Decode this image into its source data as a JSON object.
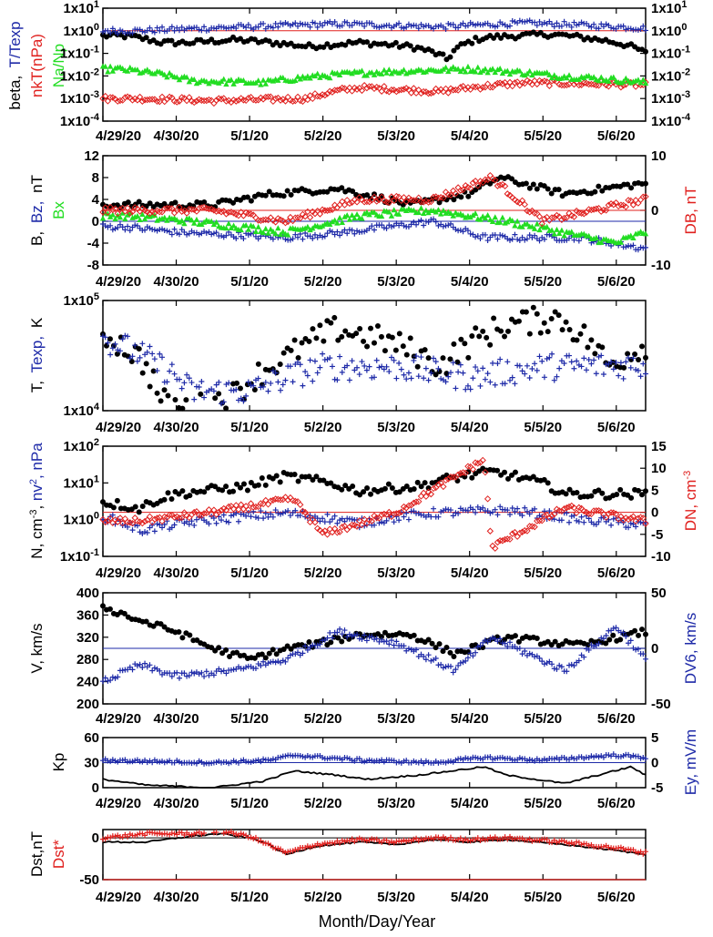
{
  "colors": {
    "black": "#000000",
    "blue": "#1e2aa8",
    "red": "#e0201e",
    "green": "#22dd22"
  },
  "x_axis": {
    "title": "Month/Day/Year",
    "dates": [
      "4/29/20",
      "4/30/20",
      "5/1/20",
      "5/2/20",
      "5/3/20",
      "5/4/20",
      "5/5/20",
      "5/6/20"
    ],
    "range_days": [
      0,
      7.4
    ]
  },
  "chart_data": [
    {
      "type": "scatter",
      "panel": "beta",
      "y_scale": "log",
      "ylim": [
        0.0001,
        10
      ],
      "y_ticks": [
        "1x10-4",
        "1x10-3",
        "1x10-2",
        "1x10-1",
        "1x100",
        "1x101"
      ],
      "y_ticks_right": [
        "1x10-4",
        "1x10-3",
        "1x10-2",
        "1x10-1",
        "1x100",
        "1x101"
      ],
      "labels": {
        "beta": "beta,",
        "t_texp": "T/Texp",
        "nkt": "nkT(nPa)",
        "na_np": "Na/Np"
      },
      "reference_line": 1,
      "series": [
        {
          "name": "beta",
          "marker": "dot",
          "color": "black",
          "baseline": 0.5,
          "values": [
            [
              0.3,
              0.6
            ],
            [
              0.8,
              0.3
            ],
            [
              1.2,
              0.3
            ],
            [
              1.8,
              0.4
            ],
            [
              2.3,
              0.3
            ],
            [
              2.8,
              0.2
            ],
            [
              3.5,
              0.3
            ],
            [
              4.2,
              0.2
            ],
            [
              4.7,
              0.05
            ],
            [
              5.2,
              0.5
            ],
            [
              6.1,
              0.7
            ],
            [
              7.0,
              0.3
            ],
            [
              7.4,
              0.1
            ]
          ]
        },
        {
          "name": "T/Texp",
          "marker": "plus",
          "color": "blue",
          "baseline": 1.2,
          "values": [
            [
              0.5,
              1.0
            ],
            [
              2.0,
              1.5
            ],
            [
              3.2,
              2.0
            ],
            [
              4.6,
              1.5
            ],
            [
              5.8,
              2.2
            ],
            [
              7.4,
              1.3
            ]
          ]
        },
        {
          "name": "nkT(nPa)",
          "marker": "diamond",
          "color": "red",
          "baseline": 0.0015,
          "values": [
            [
              0.5,
              0.001
            ],
            [
              1.5,
              0.0008
            ],
            [
              2.8,
              0.001
            ],
            [
              3.5,
              0.003
            ],
            [
              4.6,
              0.002
            ],
            [
              5.8,
              0.005
            ],
            [
              7.4,
              0.004
            ]
          ]
        },
        {
          "name": "Na/Np",
          "marker": "triangle",
          "color": "green",
          "baseline": 0.006,
          "values": [
            [
              0.2,
              0.02
            ],
            [
              1.2,
              0.006
            ],
            [
              2.2,
              0.005
            ],
            [
              3.8,
              0.015
            ],
            [
              5.0,
              0.02
            ],
            [
              6.2,
              0.01
            ],
            [
              7.4,
              0.005
            ]
          ]
        }
      ]
    },
    {
      "type": "scatter",
      "panel": "B",
      "ylim": [
        -8,
        12
      ],
      "y_ticks": [
        "-8",
        "-4",
        "0",
        "4",
        "8",
        "12"
      ],
      "right_axis": {
        "ylim": [
          -10,
          10
        ],
        "ticks": [
          "-10",
          "0",
          "10"
        ]
      },
      "labels": {
        "b": "B,",
        "bz": "Bz,",
        "nt": "nT",
        "bx": "Bx",
        "db": "DB, nT"
      },
      "reference_lines": {
        "left_zero": 0,
        "right_zero": 0
      },
      "series": [
        {
          "name": "B",
          "marker": "dot",
          "color": "black",
          "values": [
            [
              0.3,
              3
            ],
            [
              1.5,
              3
            ],
            [
              2.3,
              5
            ],
            [
              3.2,
              6
            ],
            [
              4.2,
              3
            ],
            [
              5.0,
              5
            ],
            [
              5.4,
              8
            ],
            [
              6.3,
              5
            ],
            [
              7.4,
              7
            ]
          ]
        },
        {
          "name": "Bz",
          "marker": "plus",
          "color": "blue",
          "values": [
            [
              0.3,
              -1
            ],
            [
              1.0,
              -2
            ],
            [
              2.5,
              -3
            ],
            [
              3.3,
              -2
            ],
            [
              4.5,
              0
            ],
            [
              5.2,
              -3
            ],
            [
              6.5,
              -3
            ],
            [
              7.4,
              -5
            ]
          ]
        },
        {
          "name": "Bx",
          "marker": "triangle",
          "color": "green",
          "values": [
            [
              0.3,
              1
            ],
            [
              1.2,
              0
            ],
            [
              2.5,
              -2
            ],
            [
              3.5,
              1
            ],
            [
              4.5,
              2
            ],
            [
              5.5,
              0
            ],
            [
              7.0,
              -4
            ],
            [
              7.4,
              -2
            ]
          ]
        },
        {
          "name": "DB",
          "marker": "diamond",
          "color": "red",
          "axis": "right",
          "values": [
            [
              0.3,
              0
            ],
            [
              1.5,
              0
            ],
            [
              2.5,
              -2
            ],
            [
              3.5,
              2
            ],
            [
              4.5,
              2
            ],
            [
              5.3,
              6
            ],
            [
              6.0,
              -2
            ],
            [
              7.4,
              2
            ]
          ]
        }
      ]
    },
    {
      "type": "scatter",
      "panel": "T",
      "y_scale": "log",
      "ylim": [
        10000,
        100000
      ],
      "y_ticks": [
        "1x104",
        "1x105"
      ],
      "labels": {
        "t": "T,",
        "texp": "Texp,",
        "k": "K"
      },
      "series": [
        {
          "name": "T",
          "marker": "dot",
          "color": "black",
          "values": [
            [
              0.0,
              50000
            ],
            [
              0.5,
              30000
            ],
            [
              0.8,
              12000
            ],
            [
              1.2,
              10000
            ],
            [
              1.8,
              14000
            ],
            [
              2.5,
              30000
            ],
            [
              3.2,
              55000
            ],
            [
              4.0,
              40000
            ],
            [
              4.6,
              25000
            ],
            [
              5.5,
              60000
            ],
            [
              6.2,
              70000
            ],
            [
              6.9,
              25000
            ],
            [
              7.4,
              40000
            ]
          ]
        },
        {
          "name": "Texp",
          "marker": "plus",
          "color": "blue",
          "values": [
            [
              0.0,
              45000
            ],
            [
              0.6,
              30000
            ],
            [
              1.2,
              15000
            ],
            [
              2.0,
              15000
            ],
            [
              3.0,
              25000
            ],
            [
              4.0,
              25000
            ],
            [
              5.0,
              20000
            ],
            [
              6.0,
              25000
            ],
            [
              7.4,
              26000
            ]
          ]
        }
      ]
    },
    {
      "type": "scatter",
      "panel": "N",
      "y_scale": "log",
      "ylim": [
        0.1,
        100
      ],
      "y_ticks": [
        "1x10-1",
        "1x100",
        "1x101",
        "1x102"
      ],
      "right_axis": {
        "ylim": [
          -10,
          15
        ],
        "ticks": [
          "-10",
          "-5",
          "0",
          "5",
          "10",
          "15"
        ]
      },
      "labels": {
        "n": "N, cm",
        "nv2": "nv",
        "npa": "nPa",
        "dn": "DN, cm"
      },
      "series": [
        {
          "name": "N",
          "marker": "dot",
          "color": "black",
          "values": [
            [
              0.0,
              3
            ],
            [
              0.5,
              2
            ],
            [
              1.0,
              5
            ],
            [
              2.0,
              8
            ],
            [
              2.5,
              15
            ],
            [
              3.5,
              6
            ],
            [
              4.3,
              8
            ],
            [
              5.3,
              20
            ],
            [
              6.3,
              5
            ],
            [
              7.4,
              5
            ]
          ]
        },
        {
          "name": "nv2",
          "marker": "plus",
          "color": "blue",
          "values": [
            [
              0.0,
              1.2
            ],
            [
              0.5,
              0.5
            ],
            [
              1.5,
              1.0
            ],
            [
              2.5,
              1.5
            ],
            [
              3.5,
              0.8
            ],
            [
              4.5,
              1.5
            ],
            [
              5.5,
              1.8
            ],
            [
              6.5,
              1.0
            ],
            [
              7.4,
              0.7
            ]
          ]
        },
        {
          "name": "DN",
          "marker": "diamond",
          "color": "red",
          "axis": "right",
          "values": [
            [
              0.5,
              -2
            ],
            [
              1.5,
              0
            ],
            [
              2.6,
              3
            ],
            [
              3.0,
              -5
            ],
            [
              4.0,
              0
            ],
            [
              5.2,
              12
            ],
            [
              5.3,
              -8
            ],
            [
              6.3,
              1
            ],
            [
              7.4,
              -2
            ]
          ]
        }
      ]
    },
    {
      "type": "scatter",
      "panel": "V",
      "ylim": [
        200,
        400
      ],
      "y_ticks": [
        "200",
        "240",
        "280",
        "320",
        "360",
        "400"
      ],
      "right_axis": {
        "ylim": [
          -50,
          50
        ],
        "ticks": [
          "-50",
          "0",
          "50"
        ]
      },
      "labels": {
        "v": "V, km/s",
        "dv6": "DV6, km/s"
      },
      "series": [
        {
          "name": "V",
          "marker": "dot",
          "color": "black",
          "values": [
            [
              0.0,
              375
            ],
            [
              0.5,
              350
            ],
            [
              1.0,
              330
            ],
            [
              1.5,
              300
            ],
            [
              2.0,
              280
            ],
            [
              2.5,
              300
            ],
            [
              3.0,
              310
            ],
            [
              3.5,
              325
            ],
            [
              4.2,
              325
            ],
            [
              4.8,
              290
            ],
            [
              5.5,
              320
            ],
            [
              6.5,
              305
            ],
            [
              7.4,
              330
            ]
          ]
        },
        {
          "name": "DV6",
          "marker": "plus",
          "color": "blue",
          "axis": "right",
          "values": [
            [
              0.0,
              -30
            ],
            [
              0.5,
              -15
            ],
            [
              1.0,
              -25
            ],
            [
              1.8,
              -20
            ],
            [
              2.5,
              -10
            ],
            [
              3.2,
              15
            ],
            [
              4.0,
              5
            ],
            [
              4.8,
              -20
            ],
            [
              5.3,
              10
            ],
            [
              6.3,
              -20
            ],
            [
              7.0,
              20
            ],
            [
              7.4,
              -10
            ]
          ]
        }
      ]
    },
    {
      "type": "line",
      "panel": "Kp",
      "ylim": [
        0,
        60
      ],
      "y_ticks": [
        "0",
        "30",
        "60"
      ],
      "right_axis": {
        "ylim": [
          -5,
          5
        ],
        "ticks": [
          "-5",
          "0",
          "5"
        ]
      },
      "labels": {
        "kp": "Kp",
        "ey": "Ey, mV/m"
      },
      "series": [
        {
          "name": "Kp",
          "marker": "line",
          "color": "black",
          "values": [
            [
              0.0,
              10
            ],
            [
              0.6,
              3
            ],
            [
              1.5,
              0
            ],
            [
              2.2,
              8
            ],
            [
              2.6,
              20
            ],
            [
              3.2,
              15
            ],
            [
              3.6,
              10
            ],
            [
              4.3,
              15
            ],
            [
              5.2,
              25
            ],
            [
              5.5,
              15
            ],
            [
              6.3,
              5
            ],
            [
              7.2,
              25
            ],
            [
              7.4,
              15
            ]
          ]
        },
        {
          "name": "Ey",
          "marker": "plus",
          "color": "blue",
          "axis": "right",
          "values": [
            [
              0.0,
              0.5
            ],
            [
              1.5,
              0
            ],
            [
              2.3,
              0.5
            ],
            [
              2.6,
              1.5
            ],
            [
              3.5,
              0.5
            ],
            [
              4.5,
              0
            ],
            [
              5.2,
              1
            ],
            [
              6.0,
              0.5
            ],
            [
              7.0,
              1.5
            ],
            [
              7.4,
              1
            ]
          ]
        }
      ]
    },
    {
      "type": "line",
      "panel": "Dst",
      "ylim": [
        -50,
        10
      ],
      "y_ticks": [
        "-50",
        "0"
      ],
      "labels": {
        "dst": "Dst,nT",
        "dst_star": "Dst*"
      },
      "reference_lines": {
        "zero": 0,
        "bottom": -50
      },
      "series": [
        {
          "name": "Dst",
          "marker": "line",
          "color": "black",
          "values": [
            [
              0.0,
              -5
            ],
            [
              0.6,
              -5
            ],
            [
              1.2,
              2
            ],
            [
              1.6,
              5
            ],
            [
              2.0,
              0
            ],
            [
              2.2,
              -5
            ],
            [
              2.5,
              -20
            ],
            [
              2.9,
              -10
            ],
            [
              3.5,
              -5
            ],
            [
              4.0,
              -8
            ],
            [
              4.5,
              -2
            ],
            [
              5.0,
              -5
            ],
            [
              5.5,
              -2
            ],
            [
              6.3,
              -8
            ],
            [
              7.0,
              -15
            ],
            [
              7.4,
              -20
            ]
          ]
        },
        {
          "name": "Dst*",
          "marker": "plus",
          "color": "red",
          "values": [
            [
              0.0,
              0
            ],
            [
              0.6,
              5
            ],
            [
              1.2,
              5
            ],
            [
              1.6,
              8
            ],
            [
              2.0,
              2
            ],
            [
              2.5,
              -18
            ],
            [
              2.9,
              -8
            ],
            [
              3.5,
              -2
            ],
            [
              4.0,
              -5
            ],
            [
              4.5,
              0
            ],
            [
              5.0,
              -2
            ],
            [
              5.5,
              0
            ],
            [
              6.3,
              -5
            ],
            [
              7.0,
              -12
            ],
            [
              7.4,
              -18
            ]
          ]
        }
      ]
    }
  ]
}
